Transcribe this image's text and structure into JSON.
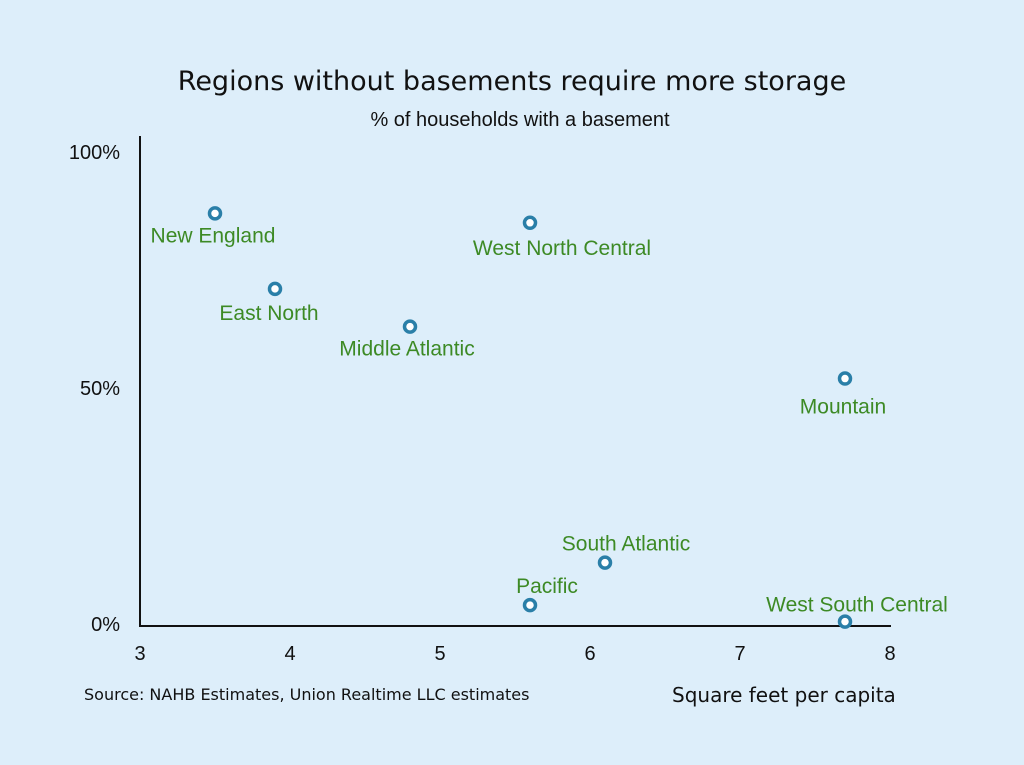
{
  "chart_data": {
    "type": "scatter",
    "title": "Regions without basements require more storage",
    "subtitle": "% of households with a basement",
    "xlabel": "Square feet per capita",
    "source": "Source: NAHB Estimates, Union Realtime LLC estimates",
    "xlim": [
      3,
      8
    ],
    "ylim": [
      0,
      100
    ],
    "x_ticks": [
      "3",
      "4",
      "5",
      "6",
      "7",
      "8"
    ],
    "y_ticks": [
      "0%",
      "50%",
      "100%"
    ],
    "grid": false,
    "colors": {
      "marker": "#2a7fa8",
      "label": "#3d8a25",
      "background": "#ddeefa"
    },
    "points": [
      {
        "label": "New England",
        "x": 3.5,
        "y": 87
      },
      {
        "label": "East North",
        "x": 3.9,
        "y": 71
      },
      {
        "label": "Middle Atlantic",
        "x": 4.8,
        "y": 63
      },
      {
        "label": "West North Central",
        "x": 5.6,
        "y": 85
      },
      {
        "label": "Mountain",
        "x": 7.7,
        "y": 52
      },
      {
        "label": "South Atlantic",
        "x": 6.1,
        "y": 13
      },
      {
        "label": "Pacific",
        "x": 5.6,
        "y": 4
      },
      {
        "label": "West South Central",
        "x": 7.7,
        "y": 0.5
      }
    ]
  }
}
